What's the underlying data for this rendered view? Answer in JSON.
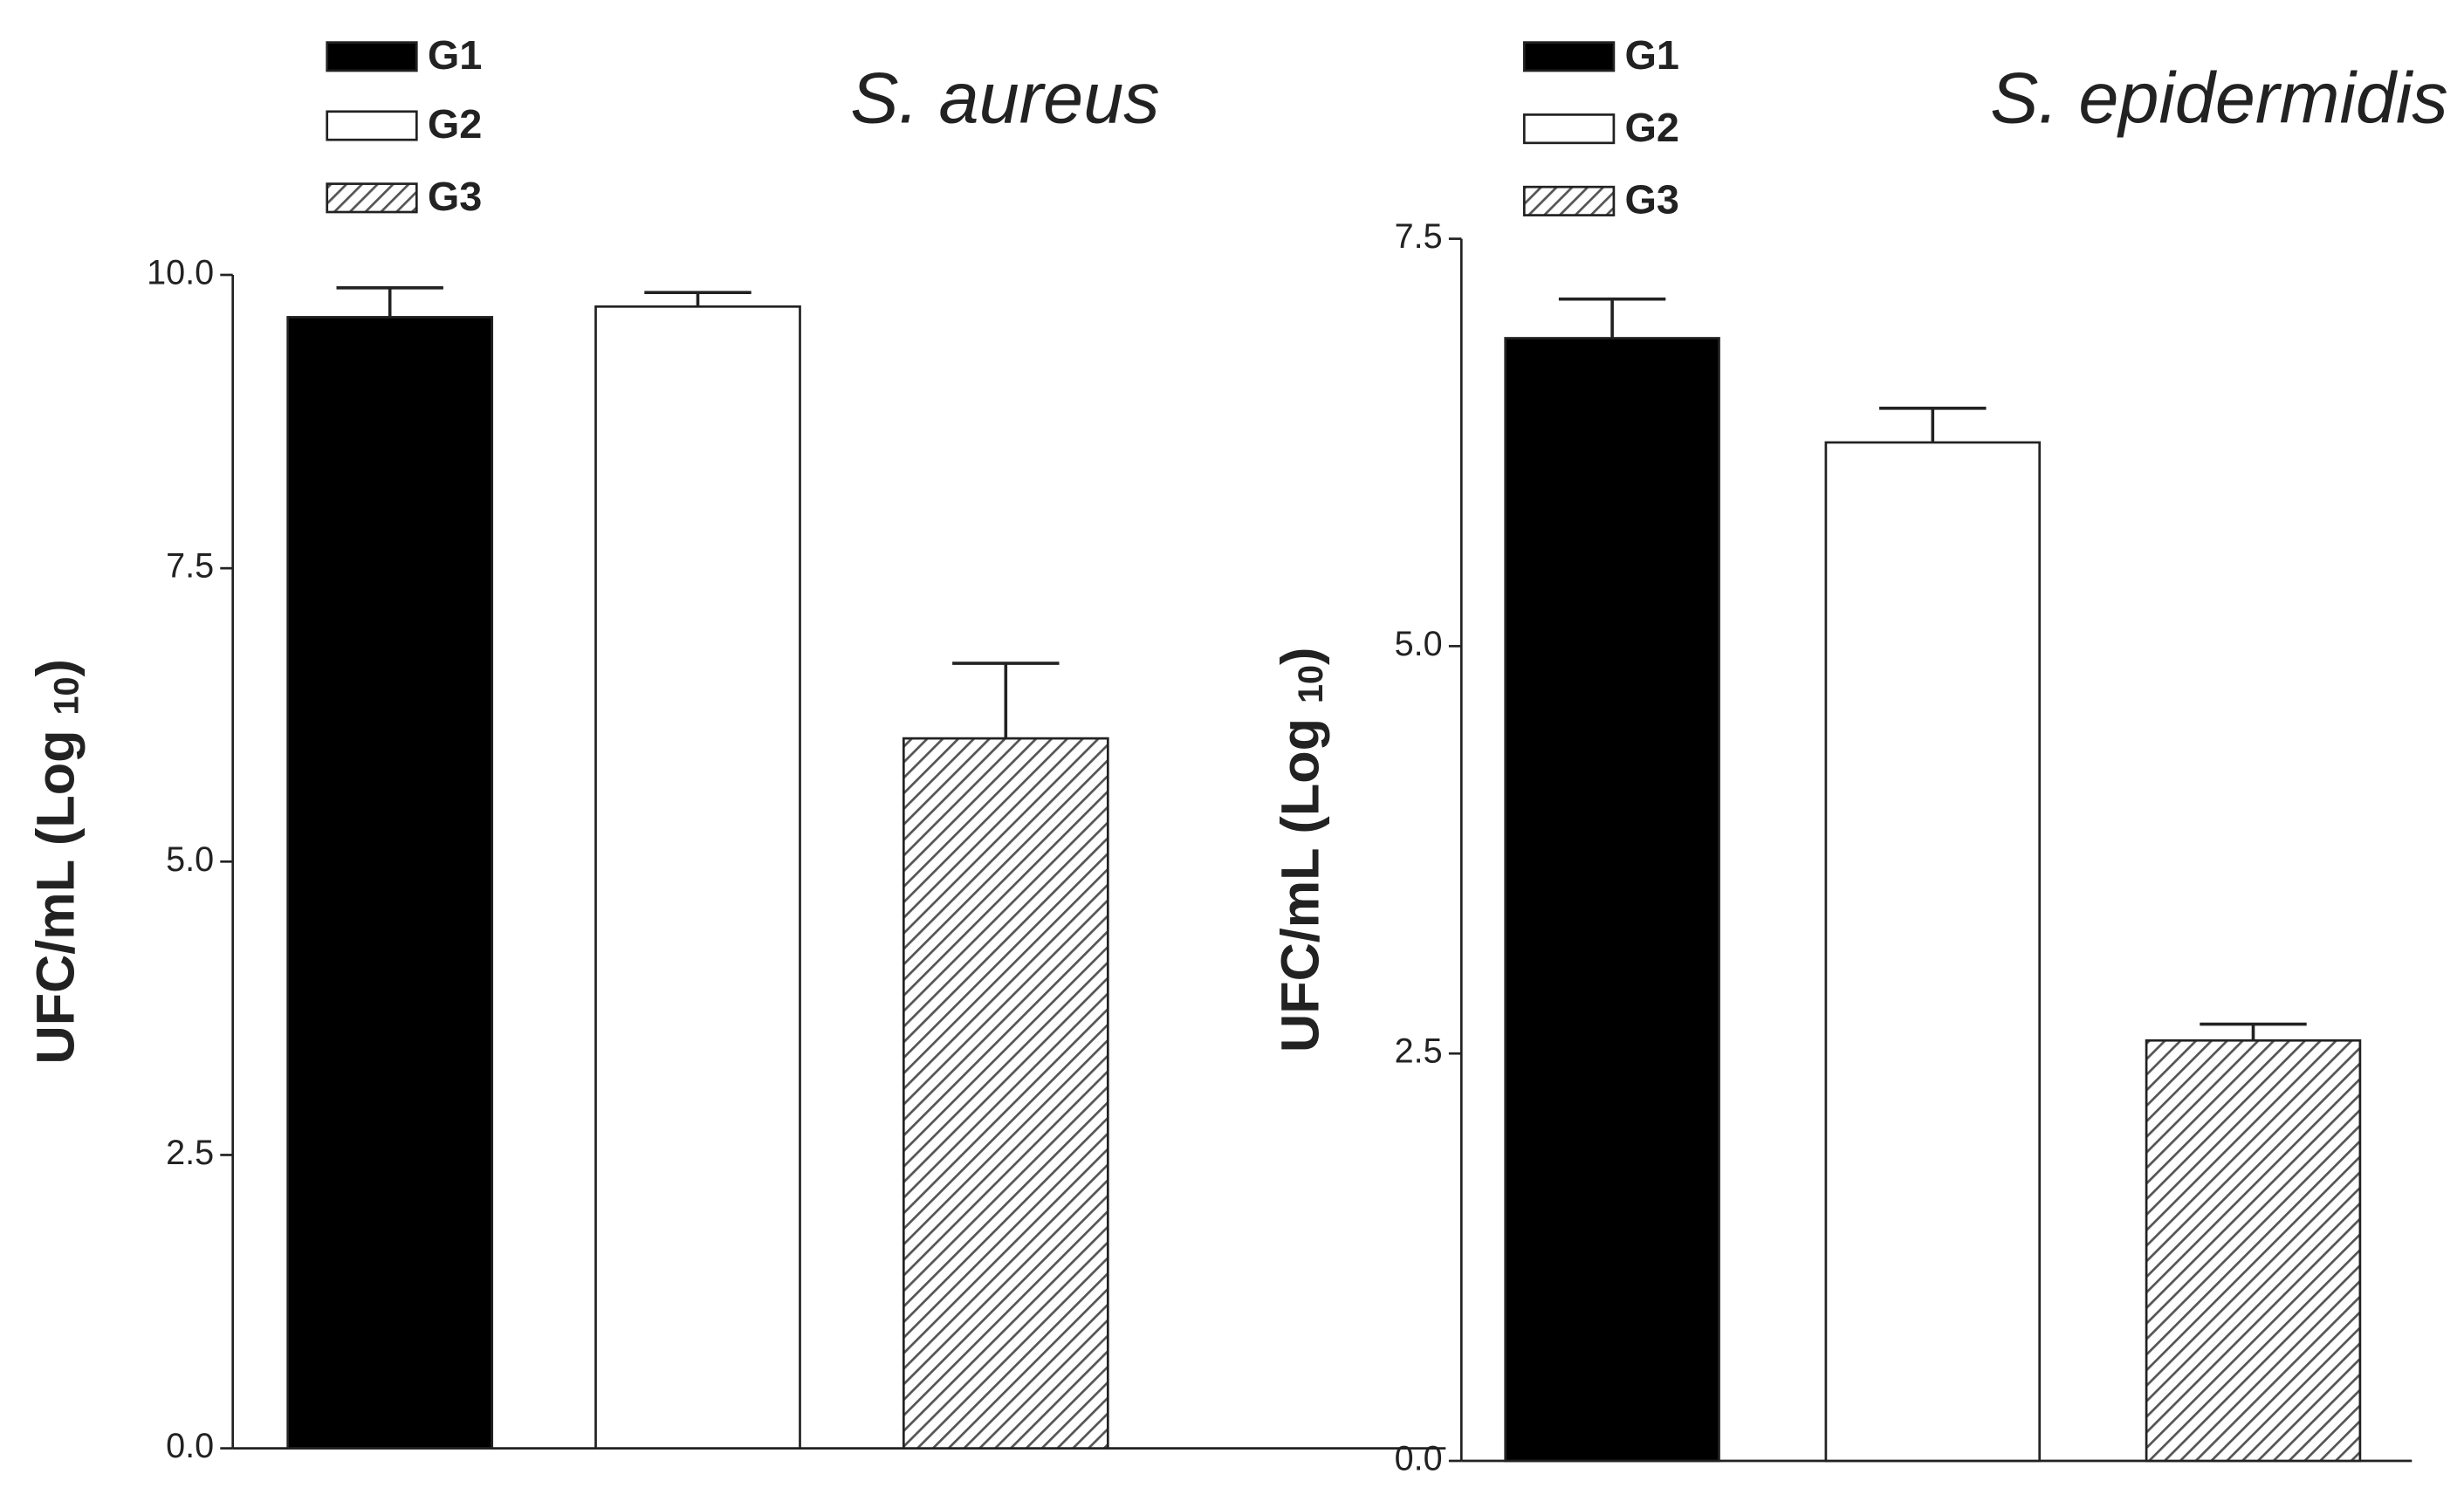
{
  "chart_data": [
    {
      "type": "bar",
      "title": "S. aureus",
      "ylabel": [
        "UFC/mL (Log ",
        "10",
        ")"
      ],
      "ylim": [
        0,
        10
      ],
      "yticks": [
        {
          "value": 0,
          "label": "0.0"
        },
        2.5,
        {
          "value": 5,
          "label": "5.0"
        },
        7.5,
        {
          "value": 10,
          "label": "10.0"
        }
      ],
      "series": [
        {
          "name": "G1",
          "color": "#000000",
          "pattern": "solid",
          "values": [
            9.64
          ],
          "errors": [
            0.25
          ]
        },
        {
          "name": "G2",
          "color": "#ffffff",
          "pattern": "solid",
          "values": [
            9.73
          ],
          "errors": [
            0.12
          ]
        },
        {
          "name": "G3",
          "color": "#555555",
          "pattern": "hatch",
          "values": [
            6.05
          ],
          "errors": [
            0.64
          ]
        }
      ]
    },
    {
      "type": "bar",
      "title": "S. epidermidis",
      "ylabel": [
        "UFC/mL (Log ",
        "10",
        ")"
      ],
      "ylim": [
        0,
        7.5
      ],
      "yticks": [
        {
          "value": 0,
          "label": "0.0"
        },
        2.5,
        {
          "value": 5,
          "label": "5.0"
        },
        7.5
      ],
      "series": [
        {
          "name": "G1",
          "color": "#000000",
          "pattern": "solid",
          "values": [
            6.89
          ],
          "errors": [
            0.24
          ]
        },
        {
          "name": "G2",
          "color": "#ffffff",
          "pattern": "solid",
          "values": [
            6.25
          ],
          "errors": [
            0.21
          ]
        },
        {
          "name": "G3",
          "color": "#555555",
          "pattern": "hatch",
          "values": [
            2.58
          ],
          "errors": [
            0.1
          ]
        }
      ]
    }
  ]
}
